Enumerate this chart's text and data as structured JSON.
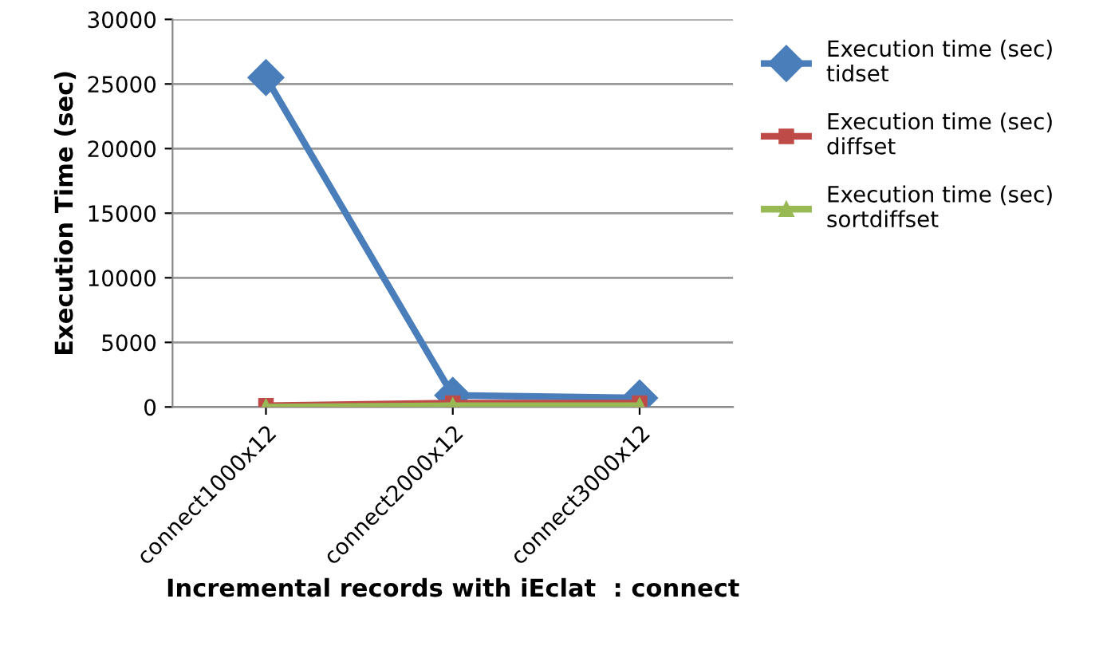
{
  "chart_data": {
    "type": "line",
    "xlabel": "Incremental records with iEclat  : connect",
    "ylabel": "Execution Time (sec)",
    "categories": [
      "connect1000x12",
      "connect2000x12",
      "connect3000x12"
    ],
    "series": [
      {
        "name": "Execution time (sec) tidset",
        "color": "#4a7ebb",
        "values": [
          25500,
          900,
          700
        ],
        "marker": "diamond"
      },
      {
        "name": "Execution time (sec) diffset",
        "color": "#be4b48",
        "values": [
          100,
          300,
          300
        ],
        "marker": "square"
      },
      {
        "name": "Execution time (sec) sortdiffset",
        "color": "#98b954",
        "values": [
          0,
          100,
          100
        ],
        "marker": "triangle"
      }
    ],
    "ylim": [
      0,
      30000
    ],
    "yticks": [
      0,
      5000,
      10000,
      15000,
      20000,
      25000,
      30000
    ],
    "grid": "y",
    "legend": "right"
  }
}
